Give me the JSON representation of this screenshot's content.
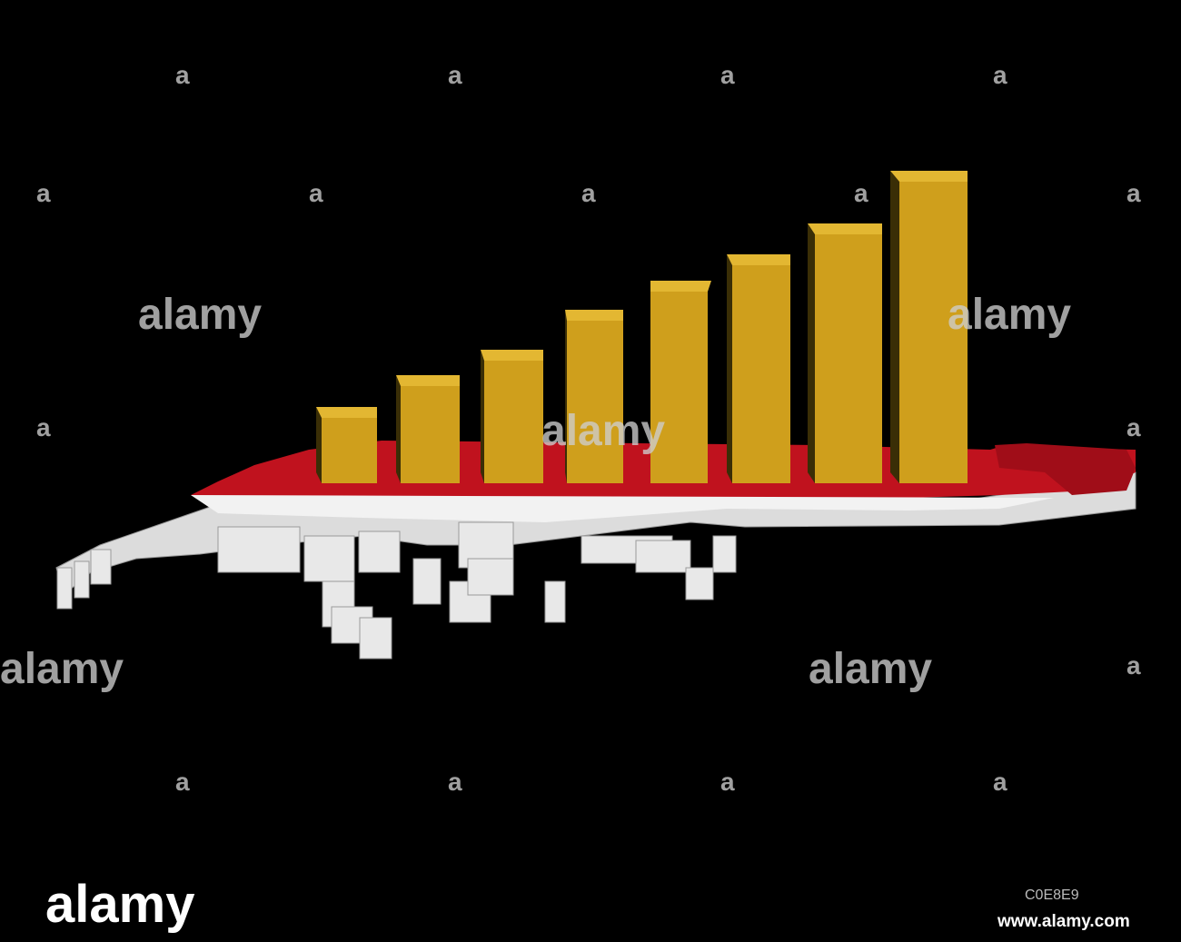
{
  "watermark": {
    "word": "alamy",
    "letter": "a"
  },
  "footer": {
    "logo": "alamy",
    "image_id": "C0E8E9",
    "url": "www.alamy.com"
  }
}
